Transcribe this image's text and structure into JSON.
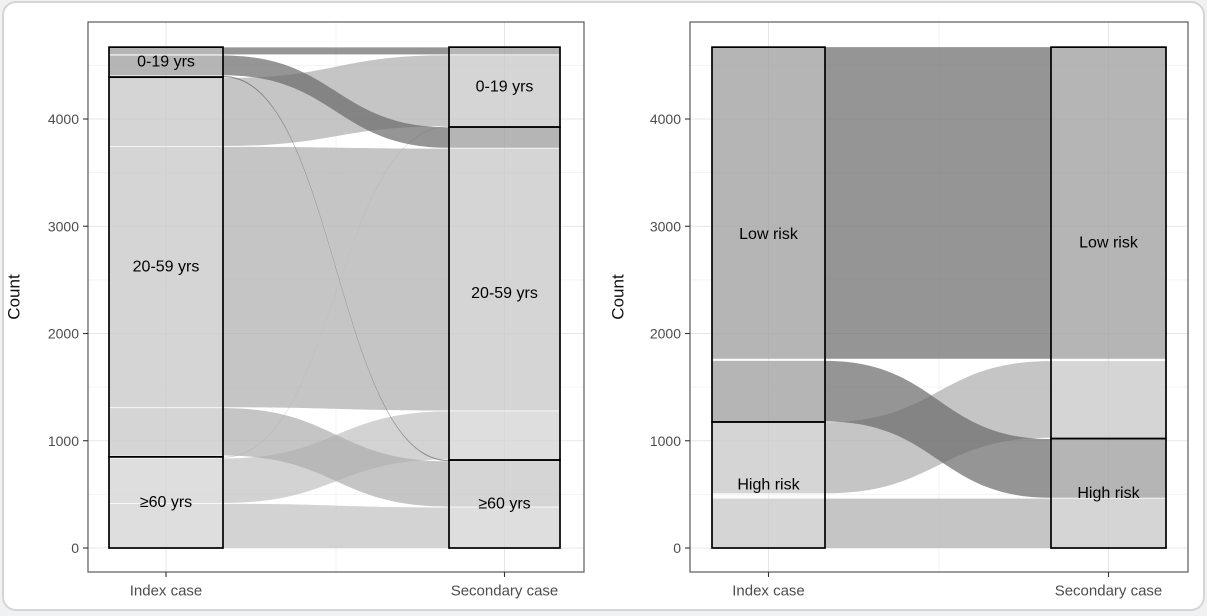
{
  "figure": {
    "kind": "paired alluvial diagrams",
    "background": "#ffffff",
    "card_border": "#d5d5d5"
  },
  "colors": {
    "flow_dark": "#686868",
    "flow_mid": "#adadad",
    "flow_light": "#c1c1c1",
    "flow_opacity": 0.7,
    "stratum_fill_rgba": "rgba(242,242,242,0.34)",
    "stratum_stroke": "#000000",
    "panel_border": "#595959",
    "grid_major": "#e7e7e7",
    "grid_minor": "#f3f3f3",
    "axis_text": "#4d4d4d",
    "tick": "#333333",
    "stratum_label_text": "#000000",
    "axis_title_text": "#111111"
  },
  "chart_data": [
    {
      "panel": "age-group-alluvial",
      "type": "alluvial",
      "ylabel": "Count",
      "x_categories": [
        "Index case",
        "Secondary case"
      ],
      "yticks": [
        0,
        1000,
        2000,
        3000,
        4000
      ],
      "y_minor": [
        500,
        1500,
        2500,
        3500,
        4500
      ],
      "ylim": [
        -224,
        4904
      ],
      "strata": {
        "index": [
          {
            "label": "0-19 yrs",
            "range": [
              4390,
              4670
            ]
          },
          {
            "label": "20-59 yrs",
            "range": [
              850,
              4390
            ]
          },
          {
            "label": "≥60 yrs",
            "range": [
              0,
              850
            ]
          }
        ],
        "secondary": [
          {
            "label": "0-19 yrs",
            "range": [
              3925,
              4670
            ]
          },
          {
            "label": "20-59 yrs",
            "range": [
              820,
              3925
            ]
          },
          {
            "label": "≥60 yrs",
            "range": [
              0,
              820
            ]
          }
        ]
      },
      "flows": [
        {
          "from": "≥60 yrs",
          "to": "≥60 yrs",
          "src": [
            0,
            412
          ],
          "dst": [
            0,
            378
          ],
          "shade": "light"
        },
        {
          "from": "≥60 yrs",
          "to": "20-59 yrs",
          "src": [
            420,
            835
          ],
          "dst": [
            826,
            1274
          ],
          "shade": "light"
        },
        {
          "from": "≥60 yrs",
          "to": "0-19 yrs",
          "src": [
            842,
            850
          ],
          "dst": [
            3925,
            3933
          ],
          "shade": "light"
        },
        {
          "from": "20-59 yrs",
          "to": "≥60 yrs",
          "src": [
            862,
            1304
          ],
          "dst": [
            386,
            808
          ],
          "shade": "mid"
        },
        {
          "from": "20-59 yrs",
          "to": "20-59 yrs",
          "src": [
            1312,
            3740
          ],
          "dst": [
            1282,
            3724
          ],
          "shade": "mid"
        },
        {
          "from": "20-59 yrs",
          "to": "0-19 yrs",
          "src": [
            3748,
            4382
          ],
          "dst": [
            3932,
            4594
          ],
          "shade": "mid"
        },
        {
          "from": "0-19 yrs",
          "to": "≥60 yrs",
          "src": [
            4390,
            4402
          ],
          "dst": [
            810,
            820
          ],
          "shade": "dark"
        },
        {
          "from": "0-19 yrs",
          "to": "20-59 yrs",
          "src": [
            4408,
            4592
          ],
          "dst": [
            3732,
            3922
          ],
          "shade": "dark"
        },
        {
          "from": "0-19 yrs",
          "to": "0-19 yrs",
          "src": [
            4602,
            4668
          ],
          "dst": [
            4602,
            4668
          ],
          "shade": "dark"
        }
      ]
    },
    {
      "panel": "risk-group-alluvial",
      "type": "alluvial",
      "ylabel": "Count",
      "x_categories": [
        "Index case",
        "Secondary case"
      ],
      "yticks": [
        0,
        1000,
        2000,
        3000,
        4000
      ],
      "y_minor": [
        500,
        1500,
        2500,
        3500,
        4500
      ],
      "ylim": [
        -224,
        4904
      ],
      "strata": {
        "index": [
          {
            "label": "Low risk",
            "range": [
              1175,
              4670
            ]
          },
          {
            "label": "High risk",
            "range": [
              0,
              1175
            ]
          }
        ],
        "secondary": [
          {
            "label": "Low risk",
            "range": [
              1020,
              4670
            ]
          },
          {
            "label": "High risk",
            "range": [
              0,
              1020
            ]
          }
        ]
      },
      "flows": [
        {
          "from": "High risk",
          "to": "High risk",
          "src": [
            0,
            460
          ],
          "dst": [
            0,
            460
          ],
          "shade": "mid"
        },
        {
          "from": "High risk",
          "to": "Low risk",
          "src": [
            510,
            1172
          ],
          "dst": [
            1028,
            1742
          ],
          "shade": "mid"
        },
        {
          "from": "Low risk",
          "to": "Low risk",
          "src": [
            1765,
            4670
          ],
          "dst": [
            1765,
            4670
          ],
          "shade": "dark"
        },
        {
          "from": "Low risk",
          "to": "High risk",
          "src": [
            1180,
            1745
          ],
          "dst": [
            468,
            1016
          ],
          "shade": "dark"
        }
      ]
    }
  ]
}
